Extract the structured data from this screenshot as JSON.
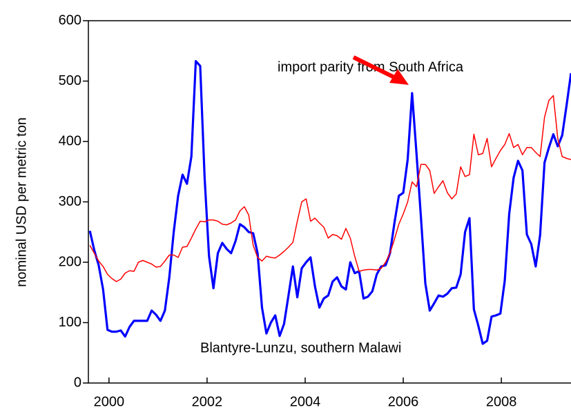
{
  "chart_data": {
    "type": "line",
    "y_label": "nominal USD per metric ton",
    "annotations": [
      "import parity from South Africa",
      "Blantyre-Lunzu, southern Malawi"
    ],
    "xlim": [
      1999.58,
      2009.42
    ],
    "xticks": [
      2000,
      2002,
      2004,
      2006,
      2008
    ],
    "ylim": [
      0,
      600
    ],
    "yticks": [
      0,
      100,
      200,
      300,
      400,
      500,
      600
    ],
    "x": [
      1999.61,
      1999.7,
      1999.79,
      1999.88,
      1999.97,
      2000.06,
      2000.15,
      2000.24,
      2000.33,
      2000.42,
      2000.51,
      2000.6,
      2000.69,
      2000.78,
      2000.87,
      2000.96,
      2001.05,
      2001.14,
      2001.23,
      2001.32,
      2001.41,
      2001.5,
      2001.59,
      2001.68,
      2001.77,
      2001.86,
      2001.95,
      2002.04,
      2002.13,
      2002.22,
      2002.31,
      2002.4,
      2002.49,
      2002.58,
      2002.67,
      2002.76,
      2002.85,
      2002.94,
      2003.03,
      2003.12,
      2003.21,
      2003.3,
      2003.39,
      2003.48,
      2003.57,
      2003.66,
      2003.75,
      2003.84,
      2003.93,
      2004.02,
      2004.11,
      2004.2,
      2004.29,
      2004.38,
      2004.47,
      2004.56,
      2004.65,
      2004.74,
      2004.83,
      2004.92,
      2005.01,
      2005.1,
      2005.19,
      2005.28,
      2005.37,
      2005.46,
      2005.55,
      2005.64,
      2005.73,
      2005.82,
      2005.91,
      2006.0,
      2006.09,
      2006.18,
      2006.27,
      2006.36,
      2006.45,
      2006.54,
      2006.63,
      2006.72,
      2006.81,
      2006.9,
      2006.99,
      2007.08,
      2007.17,
      2007.26,
      2007.35,
      2007.44,
      2007.53,
      2007.62,
      2007.71,
      2007.8,
      2007.89,
      2007.98,
      2008.07,
      2008.16,
      2008.25,
      2008.34,
      2008.43,
      2008.52,
      2008.61,
      2008.7,
      2008.79,
      2008.88,
      2008.97,
      2009.06,
      2009.15,
      2009.24,
      2009.33,
      2009.42
    ],
    "series": [
      {
        "color": "#0000ff",
        "width": 3.2,
        "values": [
          252,
          220,
          195,
          155,
          88,
          85,
          85,
          87,
          77,
          93,
          103,
          103,
          103,
          103,
          120,
          113,
          103,
          120,
          175,
          250,
          310,
          345,
          330,
          375,
          533,
          525,
          340,
          210,
          157,
          215,
          232,
          222,
          215,
          235,
          263,
          258,
          250,
          248,
          215,
          125,
          82,
          100,
          112,
          78,
          98,
          145,
          193,
          142,
          190,
          200,
          208,
          160,
          125,
          140,
          145,
          168,
          175,
          160,
          155,
          200,
          182,
          185,
          140,
          143,
          152,
          180,
          193,
          195,
          215,
          265,
          310,
          315,
          370,
          480,
          380,
          275,
          165,
          120,
          132,
          145,
          143,
          148,
          157,
          158,
          180,
          250,
          273,
          122,
          95,
          65,
          70,
          110,
          112,
          115,
          170,
          280,
          340,
          368,
          352,
          246,
          230,
          193,
          245,
          365,
          390,
          412,
          392,
          410,
          460,
          513
        ]
      },
      {
        "color": "#ff0000",
        "width": 1.5,
        "values": [
          228,
          215,
          202,
          193,
          180,
          173,
          168,
          172,
          182,
          186,
          185,
          200,
          203,
          200,
          197,
          192,
          193,
          202,
          212,
          212,
          208,
          225,
          226,
          240,
          255,
          268,
          267,
          270,
          270,
          268,
          263,
          262,
          265,
          270,
          285,
          292,
          278,
          228,
          208,
          202,
          210,
          208,
          207,
          212,
          218,
          225,
          233,
          268,
          300,
          305,
          268,
          273,
          265,
          258,
          240,
          246,
          244,
          238,
          256,
          240,
          210,
          185,
          187,
          188,
          188,
          187,
          190,
          200,
          215,
          238,
          263,
          280,
          300,
          333,
          325,
          362,
          362,
          352,
          314,
          325,
          335,
          315,
          305,
          313,
          358,
          342,
          345,
          412,
          378,
          380,
          405,
          358,
          372,
          385,
          395,
          413,
          390,
          395,
          378,
          390,
          390,
          382,
          375,
          440,
          468,
          476,
          405,
          375,
          372,
          370
        ]
      }
    ]
  }
}
